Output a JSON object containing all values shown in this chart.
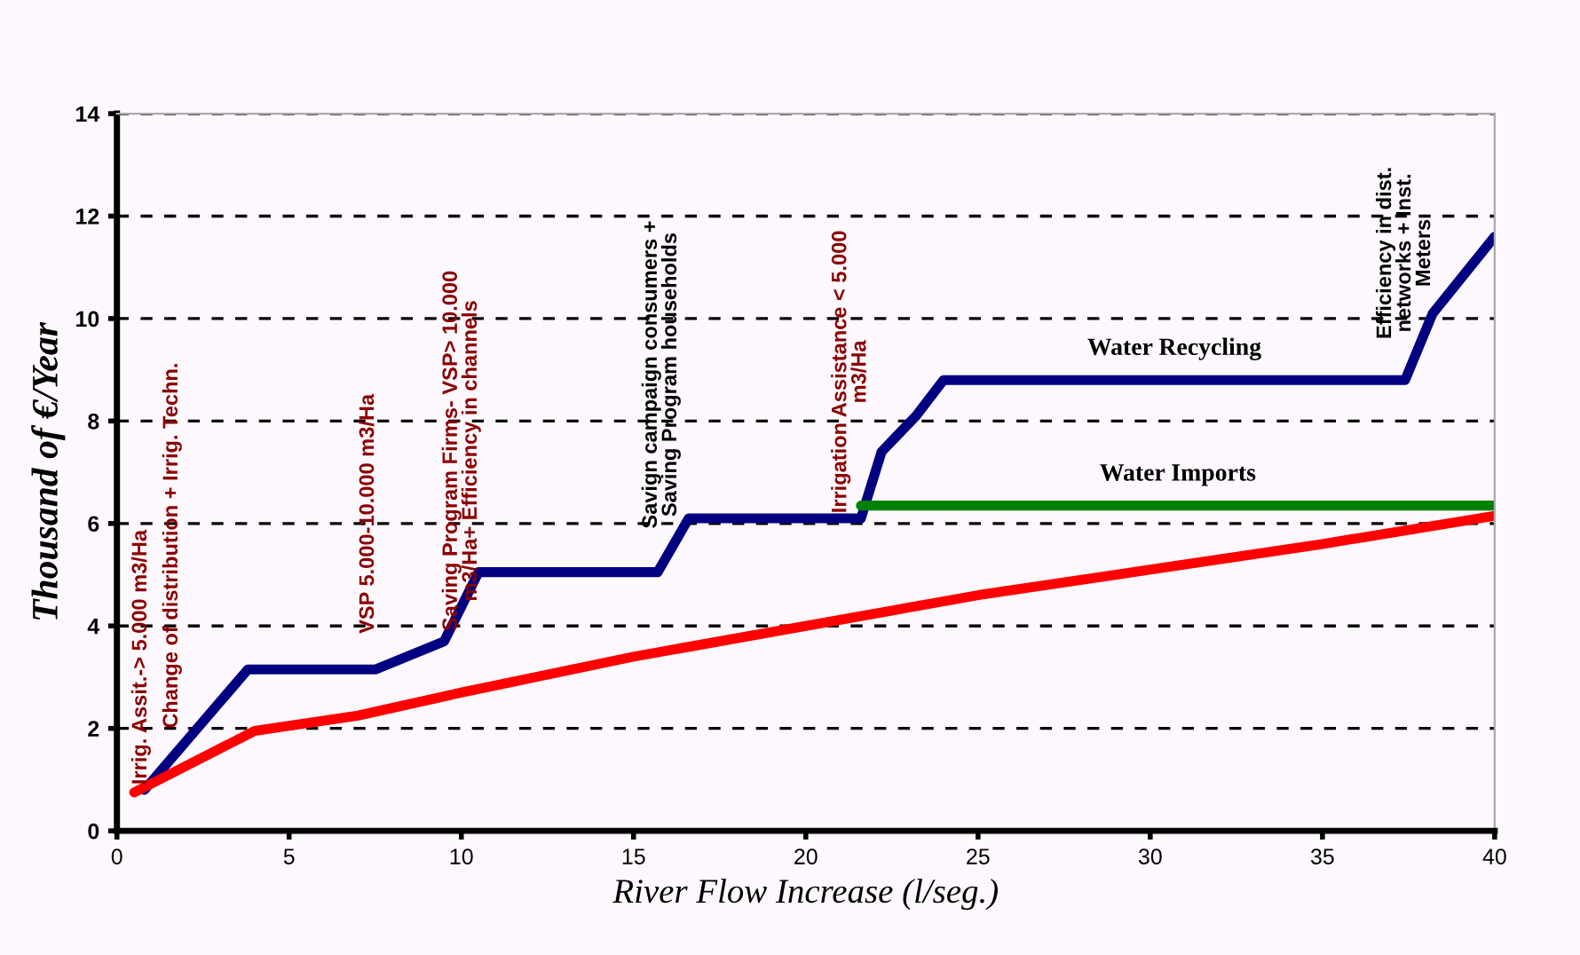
{
  "chart_data": {
    "type": "line",
    "xlabel": "River Flow Increase (l/seg.)",
    "ylabel": "Thousand of €/Year",
    "xlim": [
      0,
      40
    ],
    "xticks": [
      0,
      5,
      10,
      15,
      20,
      25,
      30,
      35,
      40
    ],
    "ylim": [
      0,
      14
    ],
    "yticks": [
      0,
      2,
      4,
      6,
      8,
      10,
      12,
      14
    ],
    "grid": "y",
    "legend": false,
    "marker": "none",
    "line_style": "solid",
    "series": [
      {
        "name": "Water Recycling",
        "color": "#000080",
        "x": [
          0.8,
          3.8,
          7.5,
          9.5,
          10.5,
          15.7,
          16.6,
          21.6,
          22.2,
          23.2,
          24,
          37.4,
          38.2,
          40
        ],
        "values": [
          0.8,
          3.15,
          3.15,
          3.7,
          5.05,
          5.05,
          6.1,
          6.1,
          7.4,
          8.1,
          8.8,
          8.8,
          10.1,
          11.6
        ]
      },
      {
        "name": "Water Imports",
        "color": "#008000",
        "x": [
          21.6,
          40
        ],
        "values": [
          6.35,
          6.35
        ]
      },
      {
        "color": "#ff0000",
        "x": [
          0.5,
          4,
          7,
          10,
          15,
          20,
          25,
          30,
          35,
          40
        ],
        "values": [
          0.75,
          1.95,
          2.25,
          2.7,
          3.4,
          4.0,
          4.6,
          5.1,
          5.6,
          6.15
        ]
      }
    ],
    "annotations": [
      "Irrig. Assit.-> 5.000 m3/Ha",
      "Change of distribution + Irrig. Techn.",
      "VSP 5.000-10.000 m3/Ha",
      "Saving Program Firms- VSP> 10.000\nm3/Ha+ Efficiency in channels",
      "Savign campaign consumers +\nSaving Program households",
      "Irrigation Assistance < 5.000\nm3/Ha",
      "Efficiency in dist.\nnetworks + Inst.\nMeters"
    ]
  }
}
